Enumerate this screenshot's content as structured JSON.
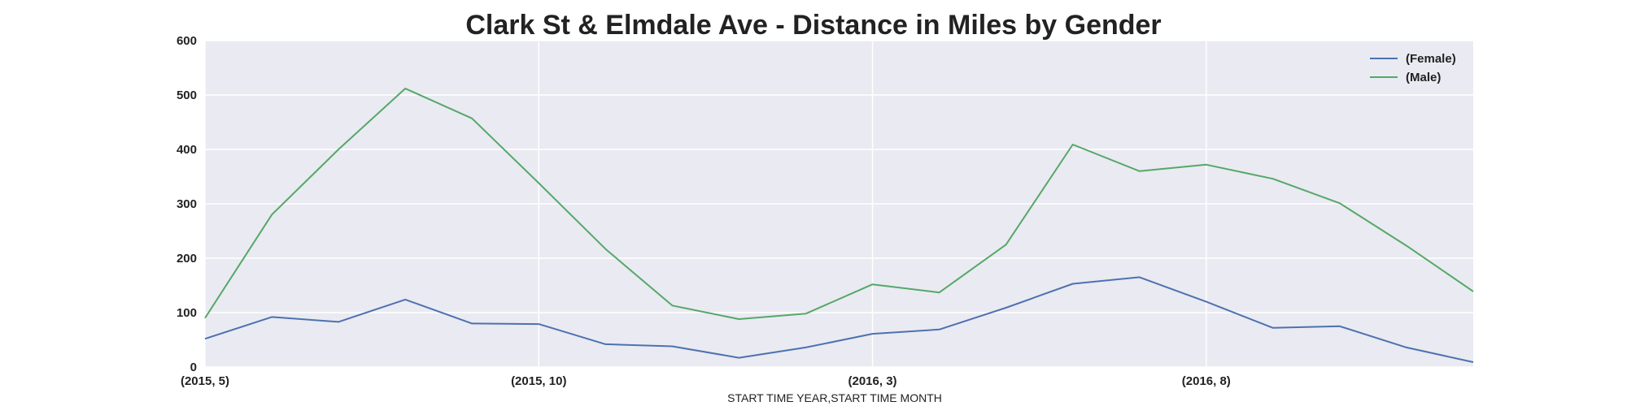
{
  "chart_data": {
    "type": "line",
    "title": "Clark St & Elmdale Ave - Distance in Miles by Gender",
    "xlabel": "START TIME YEAR,START TIME MONTH",
    "ylabel": "",
    "ylim": [
      0,
      600
    ],
    "yticks": [
      0,
      100,
      200,
      300,
      400,
      500,
      600
    ],
    "x_tick_labels": [
      "(2015, 5)",
      "(2015, 10)",
      "(2016, 3)",
      "(2016, 8)"
    ],
    "x_tick_indices": [
      0,
      5,
      10,
      15
    ],
    "categories": [
      "(2015, 5)",
      "(2015, 6)",
      "(2015, 7)",
      "(2015, 8)",
      "(2015, 9)",
      "(2015, 10)",
      "(2015, 11)",
      "(2015, 12)",
      "(2016, 1)",
      "(2016, 2)",
      "(2016, 3)",
      "(2016, 4)",
      "(2016, 5)",
      "(2016, 6)",
      "(2016, 7)",
      "(2016, 8)",
      "(2016, 9)",
      "(2016, 10)",
      "(2016, 11)",
      "(2016, 12)"
    ],
    "series": [
      {
        "name": "(Female)",
        "color": "#4c72b0",
        "values": [
          52,
          92,
          83,
          124,
          80,
          79,
          42,
          38,
          17,
          36,
          61,
          69,
          109,
          153,
          165,
          120,
          72,
          75,
          36,
          9
        ]
      },
      {
        "name": "(Male)",
        "color": "#55a868",
        "values": [
          90,
          280,
          400,
          512,
          457,
          338,
          217,
          113,
          88,
          98,
          152,
          137,
          225,
          409,
          360,
          372,
          346,
          301,
          223,
          139
        ]
      }
    ],
    "grid": true,
    "legend_position": "top-right",
    "background": "#eaeaf2",
    "grid_color": "#ffffff"
  }
}
